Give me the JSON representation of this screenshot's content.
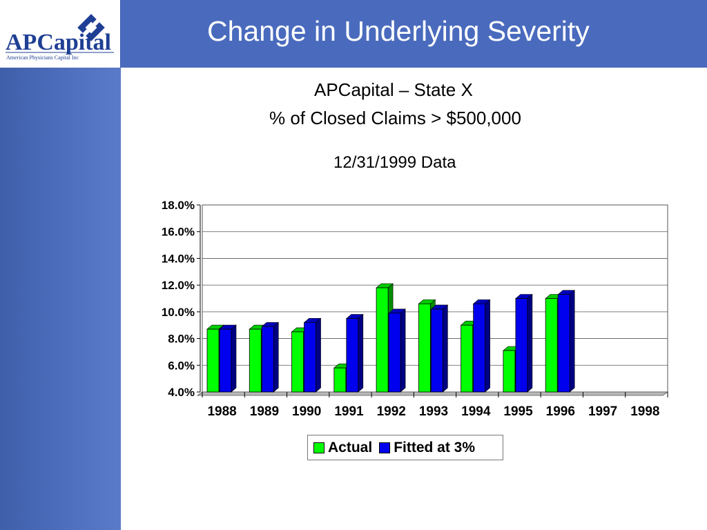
{
  "slide": {
    "title": "Change in Underlying Severity",
    "logo_text": "APCapital",
    "logo_tagline": "American Physicians Capital Inc"
  },
  "chart_data": {
    "type": "bar",
    "title_line1": "APCapital – State X",
    "title_line2": "% of Closed Claims > $500,000",
    "subtitle": "12/31/1999 Data",
    "categories": [
      "1988",
      "1989",
      "1990",
      "1991",
      "1992",
      "1993",
      "1994",
      "1995",
      "1996",
      "1997",
      "1998"
    ],
    "series": [
      {
        "name": "Actual",
        "color": "#00ff00",
        "values": [
          8.7,
          8.7,
          8.5,
          5.8,
          11.8,
          10.6,
          9.0,
          7.1,
          11.0,
          null,
          null
        ]
      },
      {
        "name": "Fitted at 3%",
        "color": "#0000ee",
        "values": [
          8.7,
          8.9,
          9.2,
          9.5,
          9.9,
          10.2,
          10.6,
          11.0,
          11.3,
          null,
          null
        ]
      }
    ],
    "y_ticks": [
      "4.0%",
      "6.0%",
      "8.0%",
      "10.0%",
      "12.0%",
      "14.0%",
      "16.0%",
      "18.0%"
    ],
    "ylim": [
      4,
      18
    ],
    "grid": true,
    "legend_position": "bottom"
  }
}
